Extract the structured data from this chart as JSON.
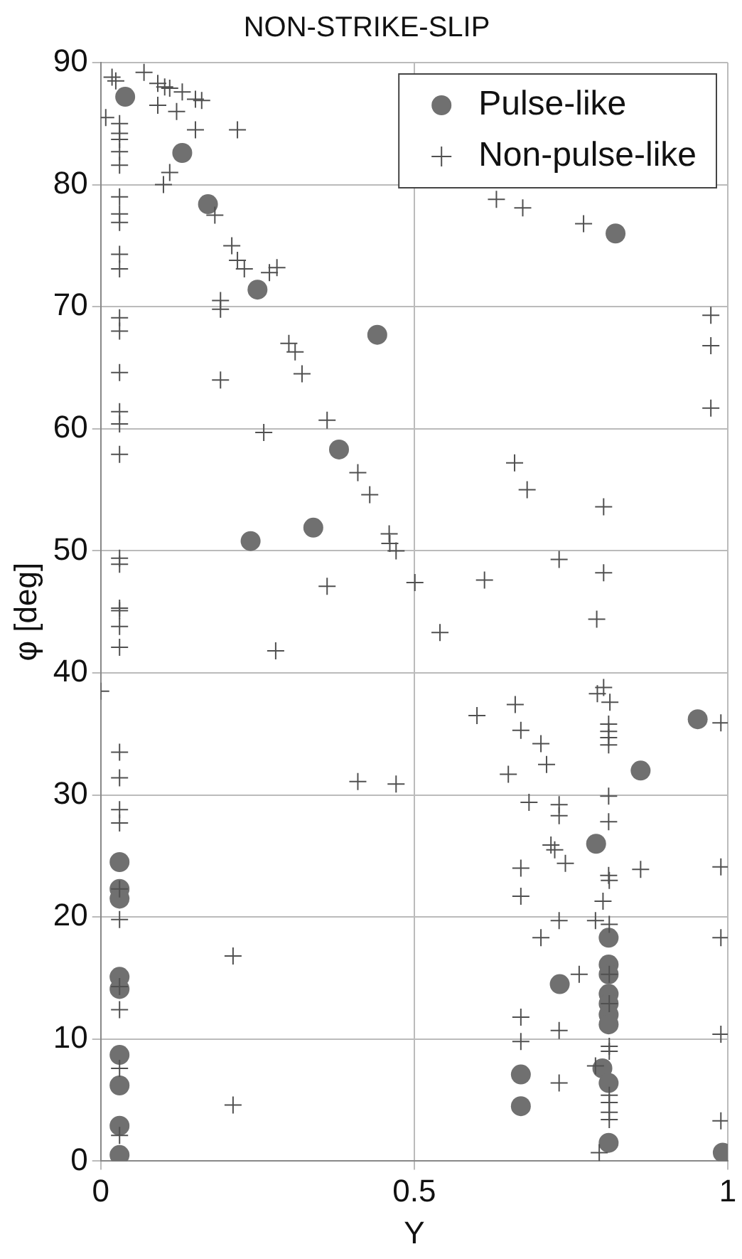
{
  "chart_data": {
    "type": "scatter",
    "title": "NON-STRIKE-SLIP",
    "xlabel": "Y",
    "ylabel": "φ [deg]",
    "xlim": [
      0,
      1
    ],
    "xticks": [
      0,
      0.5,
      1
    ],
    "ylim": [
      0,
      90
    ],
    "yticks": [
      0,
      10,
      20,
      30,
      40,
      50,
      60,
      70,
      80,
      90
    ],
    "grid": true,
    "legend": "top right",
    "series": [
      {
        "name": "Pulse-like",
        "color": "#707070",
        "marker": "circle",
        "x": [
          0.039,
          0.13,
          0.171,
          0.25,
          0.38,
          0.821,
          0.441,
          0.239,
          0.339,
          0.03,
          0.952,
          0.861,
          0.79,
          0.03,
          0.03,
          0.03,
          0.03,
          0.03,
          0.03,
          0.03,
          0.03,
          0.732,
          0.67,
          0.67,
          0.81,
          0.81,
          0.81,
          0.81,
          0.81,
          0.81,
          0.81,
          0.8,
          0.81,
          0.81,
          0.992
        ],
        "values": [
          87.2,
          82.6,
          78.4,
          71.4,
          58.3,
          76.0,
          67.7,
          50.8,
          51.9,
          24.5,
          36.2,
          32.0,
          26.0,
          22.3,
          21.5,
          15.1,
          14.1,
          8.7,
          6.2,
          2.9,
          0.5,
          14.5,
          7.1,
          4.5,
          18.3,
          16.1,
          15.3,
          13.7,
          12.9,
          12.0,
          11.2,
          7.6,
          6.4,
          1.5,
          0.7
        ]
      },
      {
        "name": "Non-pulse-like",
        "color": "#505050",
        "marker": "cross",
        "x": [
          0.018,
          0.024,
          0.069,
          0.091,
          0.102,
          0.11,
          0.13,
          0.151,
          0.161,
          0.091,
          0.121,
          0.008,
          0.151,
          0.218,
          0.03,
          0.03,
          0.03,
          0.03,
          0.03,
          0.03,
          0.03,
          0.03,
          0.03,
          0.03,
          0.03,
          0.03,
          0.03,
          0.03,
          0.03,
          0.03,
          0.11,
          0.1,
          0.182,
          0.209,
          0.218,
          0.229,
          0.269,
          0.281,
          0.191,
          0.191,
          0.3,
          0.31,
          0.321,
          0.191,
          0.361,
          0.26,
          0.631,
          0.673,
          0.77,
          0.973,
          0.973,
          0.973,
          0.66,
          0.03,
          0.03,
          0.03,
          0.03,
          0.03,
          0.03,
          0.0,
          0.03,
          0.03,
          0.03,
          0.03,
          0.279,
          0.361,
          0.41,
          0.429,
          0.46,
          0.461,
          0.471,
          0.501,
          0.612,
          0.541,
          0.68,
          0.802,
          0.731,
          0.802,
          0.791,
          0.802,
          0.792,
          0.812,
          0.81,
          0.81,
          0.81,
          0.81,
          0.661,
          0.6,
          0.67,
          0.702,
          0.711,
          0.65,
          0.41,
          0.471,
          0.683,
          0.731,
          0.731,
          0.81,
          0.81,
          0.718,
          0.724,
          0.741,
          0.67,
          0.861,
          0.81,
          0.989,
          0.67,
          0.811,
          0.801,
          0.731,
          0.789,
          0.811,
          0.702,
          0.763,
          0.811,
          0.811,
          0.67,
          0.67,
          0.731,
          0.811,
          0.811,
          0.789,
          0.731,
          0.811,
          0.811,
          0.811,
          0.811,
          0.795,
          0.989,
          0.989,
          0.989,
          0.989,
          0.03,
          0.03,
          0.03,
          0.03,
          0.03,
          0.03,
          0.211,
          0.211
        ],
        "values": [
          88.8,
          88.5,
          89.2,
          88.3,
          88.0,
          87.9,
          87.6,
          87.0,
          86.9,
          86.5,
          86.0,
          85.5,
          84.5,
          84.5,
          85.0,
          84.2,
          83.7,
          82.7,
          81.6,
          79.0,
          77.6,
          76.9,
          74.3,
          73.1,
          69.1,
          68.0,
          64.6,
          61.4,
          60.4,
          57.9,
          81.0,
          80.0,
          77.5,
          75.0,
          73.8,
          73.1,
          72.8,
          73.2,
          70.5,
          69.8,
          67.0,
          66.3,
          64.5,
          64.0,
          60.7,
          59.7,
          78.8,
          78.1,
          76.8,
          69.3,
          66.8,
          61.7,
          57.2,
          49.4,
          48.9,
          45.3,
          45.1,
          43.8,
          42.1,
          38.5,
          33.5,
          31.4,
          28.8,
          27.7,
          41.8,
          47.1,
          56.4,
          54.6,
          51.4,
          50.6,
          50.0,
          47.4,
          47.6,
          43.3,
          55.0,
          53.6,
          49.3,
          48.2,
          44.4,
          38.8,
          38.3,
          37.6,
          35.8,
          35.2,
          34.7,
          34.1,
          37.4,
          36.5,
          35.3,
          34.2,
          32.5,
          31.7,
          31.1,
          30.9,
          29.4,
          29.2,
          28.3,
          29.9,
          27.8,
          25.9,
          25.5,
          24.4,
          24.0,
          23.9,
          23.4,
          24.1,
          21.7,
          23.0,
          21.3,
          19.7,
          19.7,
          19.4,
          18.3,
          15.3,
          15.3,
          12.9,
          11.8,
          9.8,
          10.7,
          9.4,
          9.0,
          7.8,
          6.4,
          5.4,
          4.8,
          4.0,
          3.4,
          0.7,
          35.9,
          18.3,
          10.4,
          3.3,
          22.3,
          19.8,
          14.3,
          12.4,
          7.6,
          2.1,
          16.8,
          4.6
        ]
      }
    ]
  }
}
